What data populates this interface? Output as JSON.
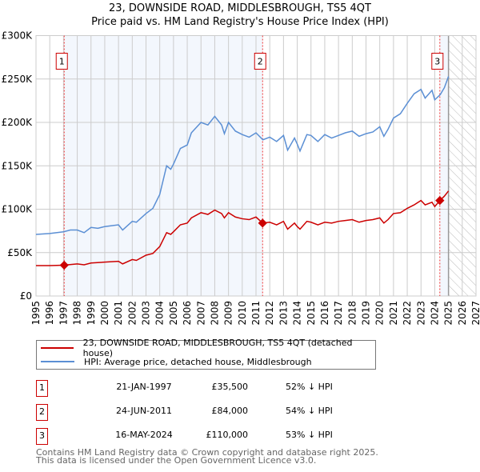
{
  "chart_data": {
    "type": "line",
    "title": "23, DOWNSIDE ROAD, MIDDLESBROUGH, TS5 4QT",
    "subtitle": "Price paid vs. HM Land Registry's House Price Index (HPI)",
    "xlim": [
      1995,
      2027
    ],
    "ylim": [
      0,
      300000
    ],
    "x_ticks": [
      "1995",
      "1996",
      "1997",
      "1998",
      "1999",
      "2000",
      "2001",
      "2002",
      "2003",
      "2004",
      "2005",
      "2006",
      "2007",
      "2008",
      "2009",
      "2010",
      "2011",
      "2012",
      "2013",
      "2014",
      "2015",
      "2016",
      "2017",
      "2018",
      "2019",
      "2020",
      "2021",
      "2022",
      "2023",
      "2024",
      "2025",
      "2026",
      "2027"
    ],
    "y_ticks": [
      {
        "v": 0,
        "label": "£0"
      },
      {
        "v": 50000,
        "label": "£50K"
      },
      {
        "v": 100000,
        "label": "£100K"
      },
      {
        "v": 150000,
        "label": "£150K"
      },
      {
        "v": 200000,
        "label": "£200K"
      },
      {
        "v": 250000,
        "label": "£250K"
      },
      {
        "v": 300000,
        "label": "£300K"
      }
    ],
    "forecast_start": 2025,
    "series": [
      {
        "name": "23, DOWNSIDE ROAD, MIDDLESBROUGH, TS5 4QT (detached house)",
        "color": "#cc0000",
        "points": [
          [
            1995,
            35
          ],
          [
            1996,
            35
          ],
          [
            1997,
            35.5
          ],
          [
            1998,
            37
          ],
          [
            1998.5,
            36
          ],
          [
            1999,
            38
          ],
          [
            2000,
            39
          ],
          [
            2001,
            40
          ],
          [
            2001.3,
            37
          ],
          [
            2002,
            42
          ],
          [
            2002.3,
            41
          ],
          [
            2003,
            47
          ],
          [
            2003.5,
            49
          ],
          [
            2004,
            57
          ],
          [
            2004.5,
            73
          ],
          [
            2004.8,
            71
          ],
          [
            2005,
            74
          ],
          [
            2005.5,
            82
          ],
          [
            2006,
            84
          ],
          [
            2006.3,
            90
          ],
          [
            2007,
            96
          ],
          [
            2007.5,
            94
          ],
          [
            2008,
            99
          ],
          [
            2008.5,
            95
          ],
          [
            2008.7,
            90
          ],
          [
            2009,
            96
          ],
          [
            2009.5,
            91
          ],
          [
            2010,
            89
          ],
          [
            2010.5,
            88
          ],
          [
            2011,
            91
          ],
          [
            2011.48,
            84
          ],
          [
            2012,
            85
          ],
          [
            2012.5,
            82
          ],
          [
            2013,
            86
          ],
          [
            2013.3,
            77
          ],
          [
            2013.8,
            84
          ],
          [
            2014,
            80
          ],
          [
            2014.2,
            77
          ],
          [
            2014.7,
            86
          ],
          [
            2015,
            85
          ],
          [
            2015.5,
            82
          ],
          [
            2016,
            85
          ],
          [
            2016.5,
            84
          ],
          [
            2017,
            86
          ],
          [
            2017.5,
            87
          ],
          [
            2018,
            88
          ],
          [
            2018.5,
            85
          ],
          [
            2019,
            87
          ],
          [
            2019.5,
            88
          ],
          [
            2020,
            90
          ],
          [
            2020.3,
            84
          ],
          [
            2020.6,
            88
          ],
          [
            2021,
            95
          ],
          [
            2021.5,
            96
          ],
          [
            2022,
            101
          ],
          [
            2022.5,
            105
          ],
          [
            2023,
            110
          ],
          [
            2023.3,
            105
          ],
          [
            2023.8,
            108
          ],
          [
            2024,
            103
          ],
          [
            2024.37,
            110
          ],
          [
            2024.7,
            115
          ],
          [
            2025,
            121
          ]
        ]
      },
      {
        "name": "HPI: Average price, detached house, Middlesbrough",
        "color": "#5b8fd4",
        "points": [
          [
            1995,
            71
          ],
          [
            1996,
            72
          ],
          [
            1997,
            74
          ],
          [
            1997.5,
            76
          ],
          [
            1998,
            76
          ],
          [
            1998.5,
            73
          ],
          [
            1999,
            79
          ],
          [
            1999.5,
            78
          ],
          [
            2000,
            80
          ],
          [
            2000.5,
            81
          ],
          [
            2001,
            82
          ],
          [
            2001.3,
            76
          ],
          [
            2002,
            86
          ],
          [
            2002.3,
            85
          ],
          [
            2003,
            95
          ],
          [
            2003.5,
            101
          ],
          [
            2004,
            117
          ],
          [
            2004.5,
            150
          ],
          [
            2004.8,
            146
          ],
          [
            2005,
            152
          ],
          [
            2005.5,
            170
          ],
          [
            2006,
            174
          ],
          [
            2006.3,
            188
          ],
          [
            2007,
            200
          ],
          [
            2007.5,
            197
          ],
          [
            2008,
            207
          ],
          [
            2008.5,
            197
          ],
          [
            2008.7,
            187
          ],
          [
            2009,
            200
          ],
          [
            2009.5,
            190
          ],
          [
            2010,
            186
          ],
          [
            2010.5,
            183
          ],
          [
            2011,
            188
          ],
          [
            2011.5,
            180
          ],
          [
            2012,
            183
          ],
          [
            2012.5,
            178
          ],
          [
            2013,
            185
          ],
          [
            2013.3,
            168
          ],
          [
            2013.8,
            182
          ],
          [
            2014,
            175
          ],
          [
            2014.2,
            167
          ],
          [
            2014.7,
            186
          ],
          [
            2015,
            185
          ],
          [
            2015.5,
            178
          ],
          [
            2016,
            186
          ],
          [
            2016.5,
            182
          ],
          [
            2017,
            185
          ],
          [
            2017.5,
            188
          ],
          [
            2018,
            190
          ],
          [
            2018.5,
            184
          ],
          [
            2019,
            187
          ],
          [
            2019.5,
            189
          ],
          [
            2020,
            195
          ],
          [
            2020.3,
            184
          ],
          [
            2020.6,
            192
          ],
          [
            2021,
            205
          ],
          [
            2021.5,
            210
          ],
          [
            2022,
            222
          ],
          [
            2022.5,
            233
          ],
          [
            2023,
            238
          ],
          [
            2023.3,
            228
          ],
          [
            2023.8,
            237
          ],
          [
            2024,
            226
          ],
          [
            2024.4,
            232
          ],
          [
            2024.7,
            240
          ],
          [
            2025,
            253
          ]
        ]
      }
    ],
    "y_unit_multiplier": 1000,
    "sales": [
      {
        "label": "1",
        "x": 1997.05,
        "price": 35500,
        "date": "21-JAN-1997",
        "price_text": "£35,500",
        "hpi_text": "52% ↓ HPI"
      },
      {
        "label": "2",
        "x": 2011.48,
        "price": 84000,
        "date": "24-JUN-2011",
        "price_text": "£84,000",
        "hpi_text": "54% ↓ HPI"
      },
      {
        "label": "3",
        "x": 2024.37,
        "price": 110000,
        "date": "16-MAY-2024",
        "price_text": "£110,000",
        "hpi_text": "53% ↓ HPI"
      }
    ]
  },
  "footer": {
    "line1": "Contains HM Land Registry data © Crown copyright and database right 2025.",
    "line2": "This data is licensed under the Open Government Licence v3.0."
  }
}
